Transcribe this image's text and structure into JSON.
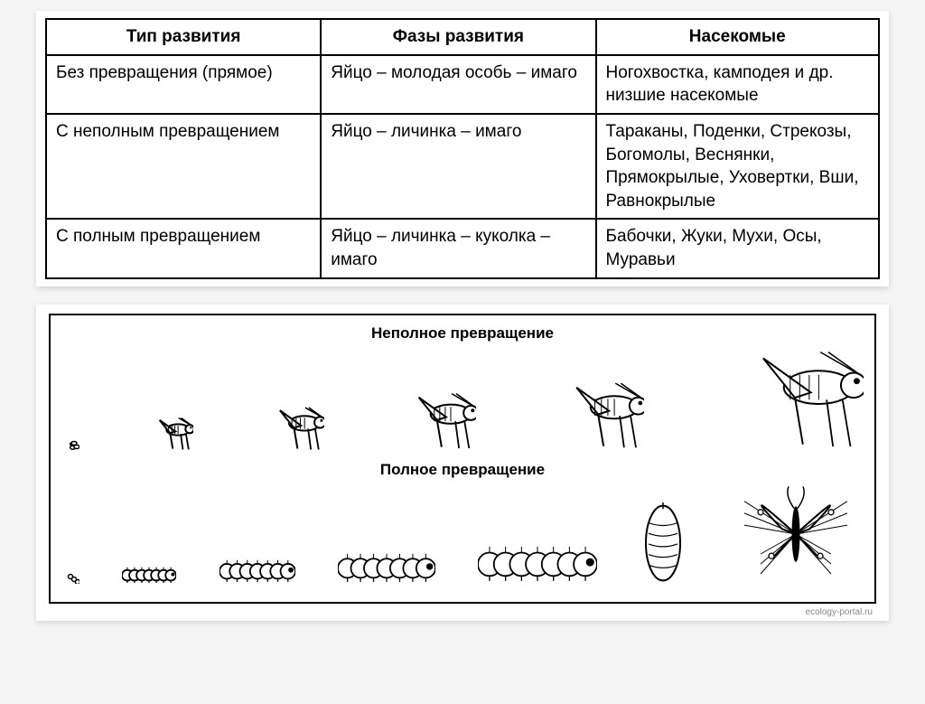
{
  "table": {
    "headers": [
      "Тип развития",
      "Фазы развития",
      "Насекомые"
    ],
    "rows": [
      [
        "Без превращения (прямое)",
        "Яйцо – молодая особь – имаго",
        "Ногохвостка, камподея и др. низшие насекомые"
      ],
      [
        "С неполным превращением",
        "Яйцо – личинка – имаго",
        "Тараканы, Поденки, Стрекозы, Богомолы, Веснянки, Прямокрылые, Уховертки, Вши, Равнокрылые"
      ],
      [
        "С полным превращением",
        "Яйцо – личинка – куколка – имаго",
        "Бабочки, Жуки, Мухи, Осы, Муравьи"
      ]
    ],
    "border_color": "#000000",
    "font_size": 19
  },
  "diagram": {
    "title_incomplete": "Неполное превращение",
    "title_complete": "Полное превращение",
    "credit": "ecology-portal.ru",
    "incomplete_stages": [
      {
        "type": "eggs",
        "scale": 0.5
      },
      {
        "type": "grasshopper",
        "scale": 0.45
      },
      {
        "type": "grasshopper",
        "scale": 0.6
      },
      {
        "type": "grasshopper",
        "scale": 0.78
      },
      {
        "type": "grasshopper",
        "scale": 0.92
      },
      {
        "type": "grasshopper",
        "scale": 1.35
      }
    ],
    "complete_stages": [
      {
        "type": "eggs2",
        "scale": 0.5
      },
      {
        "type": "caterpillar",
        "scale": 0.5
      },
      {
        "type": "caterpillar",
        "scale": 0.7
      },
      {
        "type": "caterpillar",
        "scale": 0.9
      },
      {
        "type": "caterpillar",
        "scale": 1.1
      },
      {
        "type": "pupa",
        "scale": 1.0
      },
      {
        "type": "butterfly",
        "scale": 1.0
      }
    ],
    "stroke": "#000000",
    "fill": "#ffffff"
  }
}
